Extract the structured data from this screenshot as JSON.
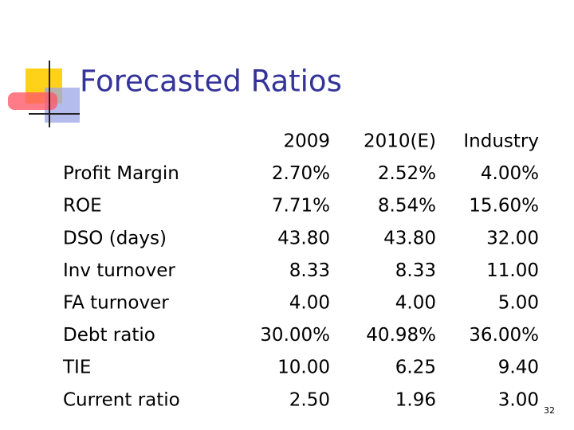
{
  "header": {
    "title": "Forecasted Ratios"
  },
  "table": {
    "columns": [
      "2009",
      "2010(E)",
      "Industry"
    ],
    "rows": [
      [
        "Profit Margin",
        "2.70%",
        "2.52%",
        "4.00%"
      ],
      [
        "ROE",
        "7.71%",
        "8.54%",
        "15.60%"
      ],
      [
        "DSO (days)",
        "43.80",
        "43.80",
        "32.00"
      ],
      [
        "Inv turnover",
        "8.33",
        "8.33",
        "11.00"
      ],
      [
        "FA turnover",
        "4.00",
        "4.00",
        "5.00"
      ],
      [
        "Debt ratio",
        "30.00%",
        "40.98%",
        "36.00%"
      ],
      [
        "TIE",
        "10.00",
        "6.25",
        "9.40"
      ],
      [
        "Current ratio",
        "2.50",
        "1.96",
        "3.00"
      ]
    ]
  },
  "footer": {
    "page_number": "32"
  }
}
